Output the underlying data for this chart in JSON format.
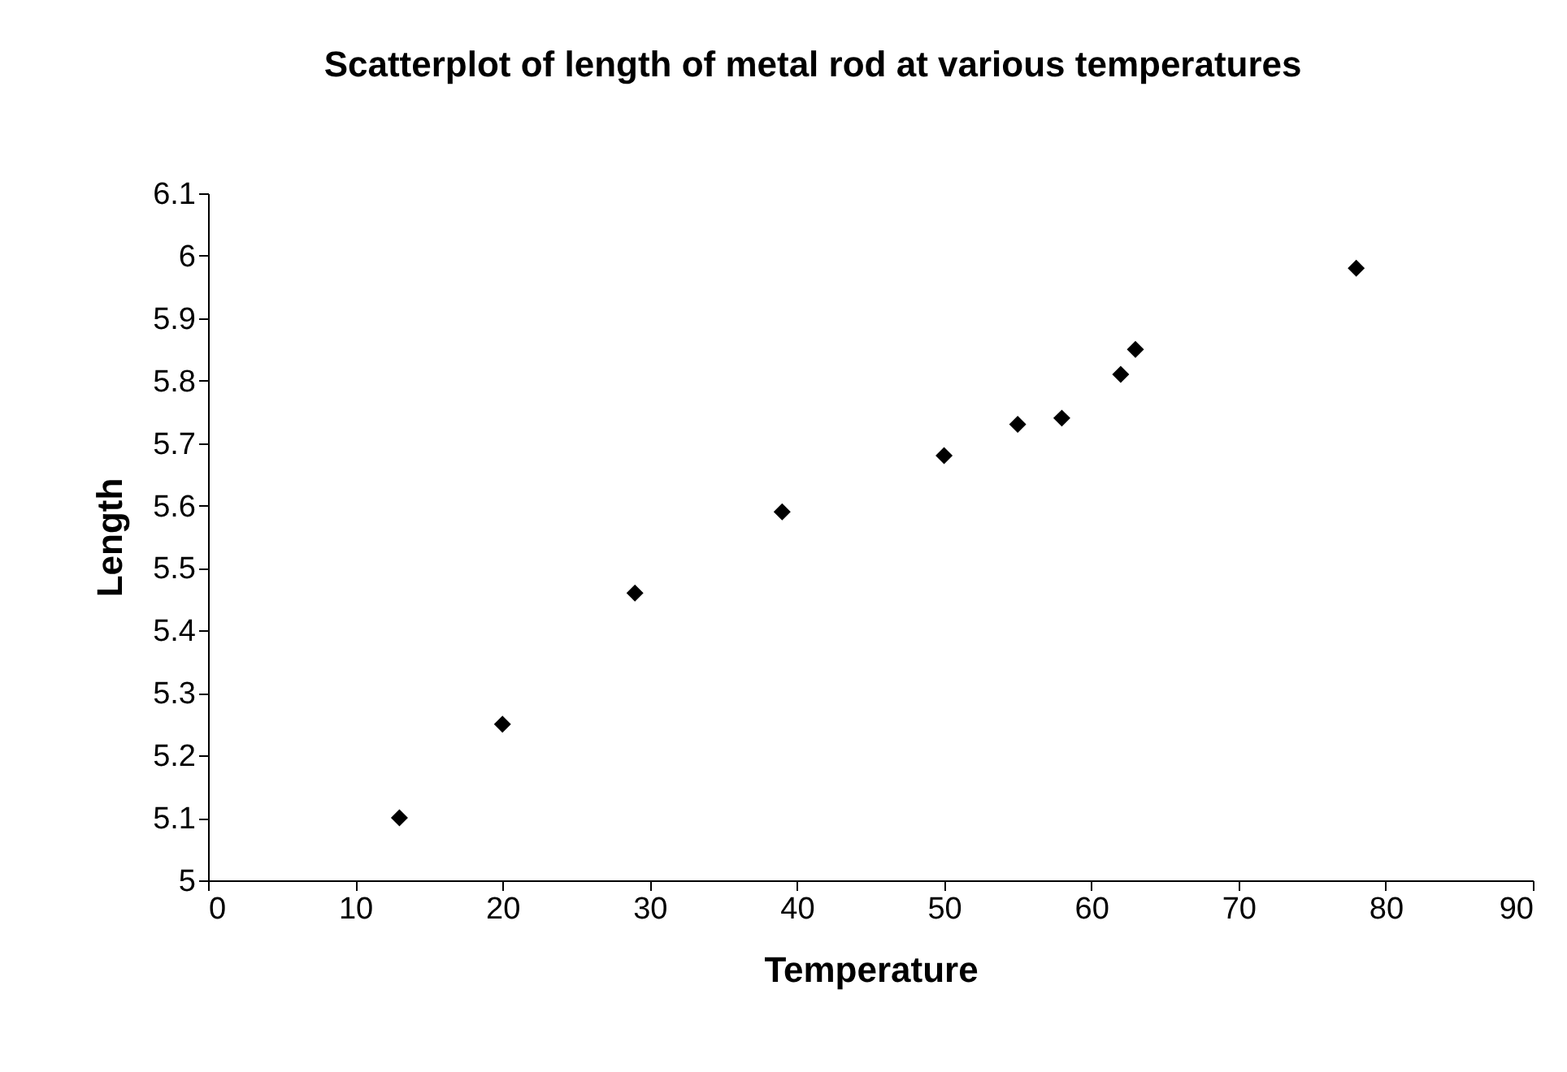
{
  "chart_data": {
    "type": "scatter",
    "title": "Scatterplot of length of metal rod at various temperatures",
    "xlabel": "Temperature",
    "ylabel": "Length",
    "x": [
      13,
      20,
      29,
      39,
      50,
      55,
      58,
      62,
      63,
      78
    ],
    "values": [
      5.1,
      5.25,
      5.46,
      5.59,
      5.68,
      5.73,
      5.74,
      5.81,
      5.85,
      5.98
    ],
    "color": "#000000",
    "marker": "diamond",
    "grid": false,
    "xlim": [
      0,
      90
    ],
    "xticks": [
      0,
      10,
      20,
      30,
      40,
      50,
      60,
      70,
      80,
      90
    ],
    "ylim": [
      5,
      6.1
    ],
    "yticks": [
      5,
      5.1,
      5.2,
      5.3,
      5.4,
      5.5,
      5.6,
      5.7,
      5.8,
      5.9,
      6,
      6.1
    ]
  }
}
